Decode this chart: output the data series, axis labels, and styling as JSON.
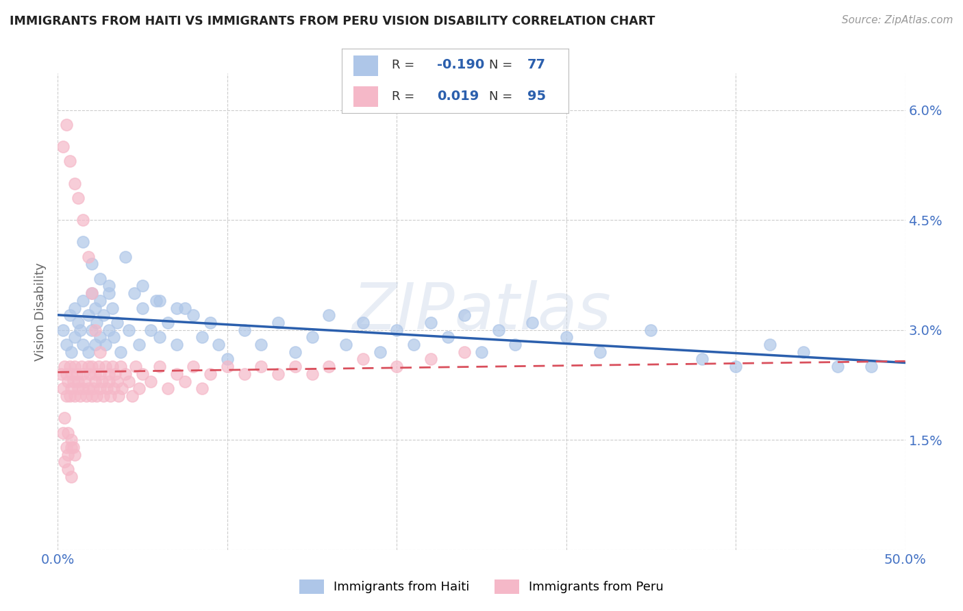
{
  "title": "IMMIGRANTS FROM HAITI VS IMMIGRANTS FROM PERU VISION DISABILITY CORRELATION CHART",
  "source": "Source: ZipAtlas.com",
  "ylabel": "Vision Disability",
  "xlim": [
    0.0,
    0.5
  ],
  "ylim": [
    0.0,
    0.065
  ],
  "yticks": [
    0.0,
    0.015,
    0.03,
    0.045,
    0.06
  ],
  "ytick_labels": [
    "",
    "1.5%",
    "3.0%",
    "4.5%",
    "6.0%"
  ],
  "xticks": [
    0.0,
    0.1,
    0.2,
    0.3,
    0.4,
    0.5
  ],
  "xtick_labels": [
    "0.0%",
    "",
    "",
    "",
    "",
    "50.0%"
  ],
  "haiti_R": -0.19,
  "haiti_N": 77,
  "peru_R": 0.019,
  "peru_N": 95,
  "haiti_color": "#aec6e8",
  "peru_color": "#f5b8c8",
  "haiti_line_color": "#2b5fad",
  "peru_line_color": "#d94f5c",
  "legend_haiti_label": "Immigrants from Haiti",
  "legend_peru_label": "Immigrants from Peru",
  "background_color": "#ffffff",
  "grid_color": "#cccccc",
  "watermark": "ZIPatlas",
  "title_color": "#222222",
  "axis_label_color": "#4472c4",
  "haiti_x": [
    0.003,
    0.005,
    0.007,
    0.008,
    0.01,
    0.01,
    0.012,
    0.013,
    0.015,
    0.015,
    0.018,
    0.018,
    0.02,
    0.02,
    0.022,
    0.022,
    0.023,
    0.025,
    0.025,
    0.027,
    0.028,
    0.03,
    0.03,
    0.032,
    0.033,
    0.035,
    0.037,
    0.04,
    0.042,
    0.045,
    0.048,
    0.05,
    0.055,
    0.058,
    0.06,
    0.065,
    0.07,
    0.075,
    0.08,
    0.085,
    0.09,
    0.095,
    0.1,
    0.11,
    0.12,
    0.13,
    0.14,
    0.15,
    0.16,
    0.17,
    0.18,
    0.19,
    0.2,
    0.21,
    0.22,
    0.23,
    0.24,
    0.25,
    0.26,
    0.27,
    0.28,
    0.3,
    0.32,
    0.35,
    0.38,
    0.4,
    0.42,
    0.44,
    0.46,
    0.48,
    0.015,
    0.02,
    0.025,
    0.03,
    0.05,
    0.06,
    0.07
  ],
  "haiti_y": [
    0.03,
    0.028,
    0.032,
    0.027,
    0.029,
    0.033,
    0.031,
    0.03,
    0.028,
    0.034,
    0.032,
    0.027,
    0.035,
    0.03,
    0.033,
    0.028,
    0.031,
    0.029,
    0.034,
    0.032,
    0.028,
    0.036,
    0.03,
    0.033,
    0.029,
    0.031,
    0.027,
    0.04,
    0.03,
    0.035,
    0.028,
    0.033,
    0.03,
    0.034,
    0.029,
    0.031,
    0.028,
    0.033,
    0.032,
    0.029,
    0.031,
    0.028,
    0.026,
    0.03,
    0.028,
    0.031,
    0.027,
    0.029,
    0.032,
    0.028,
    0.031,
    0.027,
    0.03,
    0.028,
    0.031,
    0.029,
    0.032,
    0.027,
    0.03,
    0.028,
    0.031,
    0.029,
    0.027,
    0.03,
    0.026,
    0.025,
    0.028,
    0.027,
    0.025,
    0.025,
    0.042,
    0.039,
    0.037,
    0.035,
    0.036,
    0.034,
    0.033
  ],
  "peru_x": [
    0.002,
    0.003,
    0.004,
    0.005,
    0.005,
    0.006,
    0.007,
    0.007,
    0.008,
    0.008,
    0.009,
    0.01,
    0.01,
    0.011,
    0.012,
    0.012,
    0.013,
    0.014,
    0.015,
    0.015,
    0.016,
    0.017,
    0.018,
    0.018,
    0.019,
    0.02,
    0.02,
    0.021,
    0.022,
    0.022,
    0.023,
    0.024,
    0.025,
    0.025,
    0.026,
    0.027,
    0.028,
    0.029,
    0.03,
    0.03,
    0.031,
    0.032,
    0.033,
    0.034,
    0.035,
    0.036,
    0.037,
    0.038,
    0.04,
    0.042,
    0.044,
    0.046,
    0.048,
    0.05,
    0.055,
    0.06,
    0.065,
    0.07,
    0.075,
    0.08,
    0.085,
    0.09,
    0.1,
    0.11,
    0.12,
    0.13,
    0.14,
    0.15,
    0.16,
    0.18,
    0.2,
    0.22,
    0.24,
    0.003,
    0.005,
    0.007,
    0.01,
    0.012,
    0.015,
    0.018,
    0.02,
    0.022,
    0.025,
    0.003,
    0.005,
    0.006,
    0.008,
    0.009,
    0.004,
    0.006,
    0.008,
    0.01,
    0.004,
    0.006,
    0.008
  ],
  "peru_y": [
    0.024,
    0.022,
    0.025,
    0.021,
    0.024,
    0.023,
    0.021,
    0.025,
    0.022,
    0.024,
    0.023,
    0.021,
    0.025,
    0.024,
    0.022,
    0.023,
    0.021,
    0.025,
    0.022,
    0.024,
    0.023,
    0.021,
    0.025,
    0.022,
    0.024,
    0.021,
    0.025,
    0.022,
    0.024,
    0.023,
    0.021,
    0.025,
    0.022,
    0.024,
    0.023,
    0.021,
    0.025,
    0.022,
    0.024,
    0.023,
    0.021,
    0.025,
    0.022,
    0.024,
    0.023,
    0.021,
    0.025,
    0.022,
    0.024,
    0.023,
    0.021,
    0.025,
    0.022,
    0.024,
    0.023,
    0.025,
    0.022,
    0.024,
    0.023,
    0.025,
    0.022,
    0.024,
    0.025,
    0.024,
    0.025,
    0.024,
    0.025,
    0.024,
    0.025,
    0.026,
    0.025,
    0.026,
    0.027,
    0.055,
    0.058,
    0.053,
    0.05,
    0.048,
    0.045,
    0.04,
    0.035,
    0.03,
    0.027,
    0.016,
    0.014,
    0.013,
    0.015,
    0.014,
    0.018,
    0.016,
    0.014,
    0.013,
    0.012,
    0.011,
    0.01
  ]
}
